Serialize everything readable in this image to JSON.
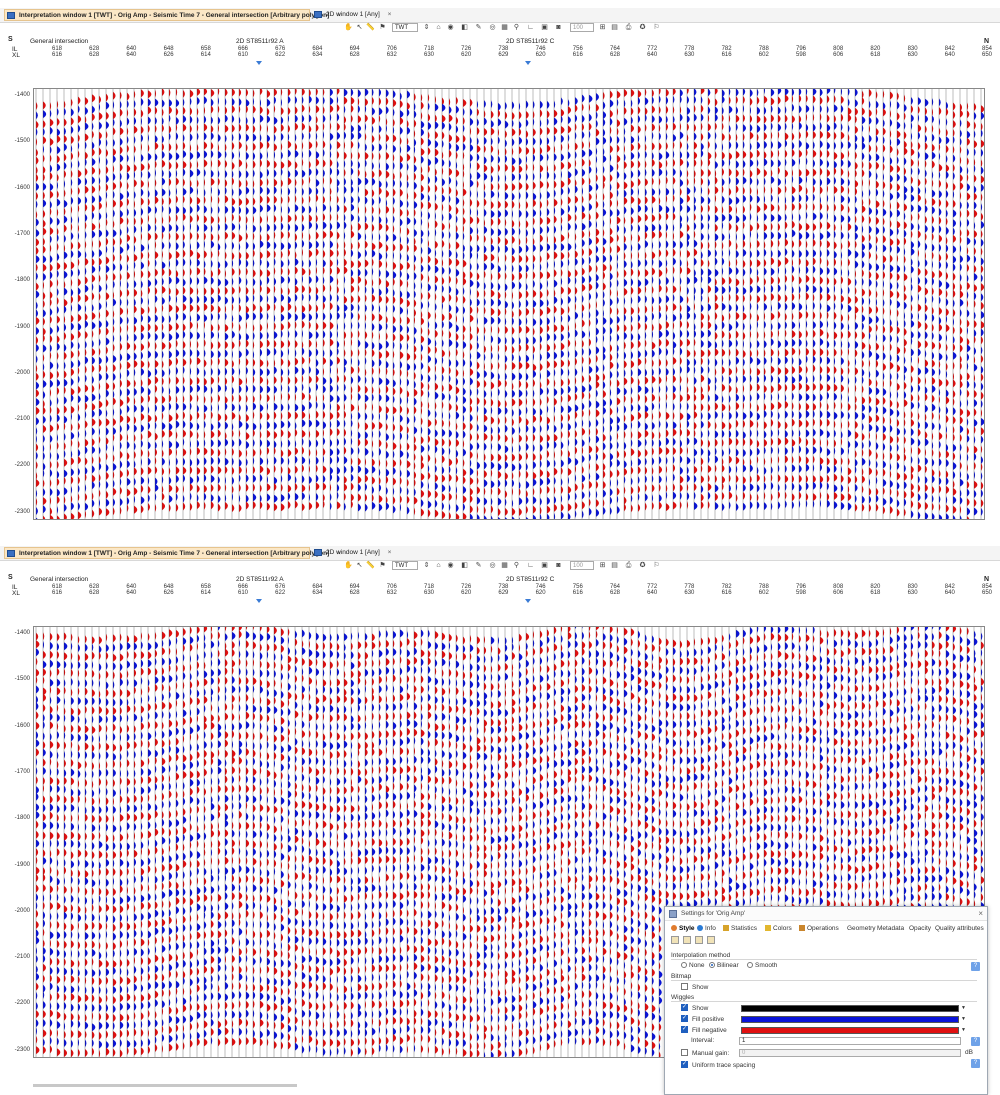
{
  "panels": [
    {
      "tab_active": "Interpretation window 1 [TWT] - Orig Amp - Seismic Time 7 - General intersection [Arbitrary polygon]",
      "tab_other": "2D window 1 [Any]",
      "close_glyph": "×",
      "toolbar": {
        "domain": "TWT",
        "zoom": "100"
      },
      "header": {
        "south": "S",
        "north": "N",
        "row1_label": "General intersection",
        "il_label": "IL",
        "xl_label": "XL",
        "line_a": "2D ST8511r92 A",
        "line_c": "2D ST8511r92 C"
      },
      "il_ticks": [
        "618",
        "628",
        "640",
        "648",
        "658",
        "666",
        "676",
        "684",
        "694",
        "706",
        "718",
        "726",
        "738",
        "746",
        "756",
        "764",
        "772",
        "778",
        "782",
        "788",
        "796",
        "808",
        "820",
        "830",
        "842",
        "854"
      ],
      "xl_ticks": [
        "616",
        "628",
        "640",
        "626",
        "614",
        "610",
        "622",
        "634",
        "628",
        "632",
        "630",
        "620",
        "629",
        "620",
        "616",
        "628",
        "640",
        "630",
        "616",
        "602",
        "598",
        "606",
        "618",
        "630",
        "640",
        "650"
      ],
      "time_labels": [
        "-1400",
        "-1500",
        "-1600",
        "-1700",
        "-1800",
        "-1900",
        "-2000",
        "-2100",
        "-2200",
        "-2300"
      ]
    },
    {
      "tab_active": "Interpretation window 1 [TWT] - Orig Amp - Seismic Time 7 - General intersection [Arbitrary polygon]",
      "tab_other": "2D window 1 [Any]",
      "close_glyph": "×",
      "toolbar": {
        "domain": "TWT",
        "zoom": "100"
      },
      "header": {
        "south": "S",
        "north": "N",
        "row1_label": "General intersection",
        "il_label": "IL",
        "xl_label": "XL",
        "line_a": "2D ST8511r92 A",
        "line_c": "2D ST8511r92 C"
      },
      "il_ticks": [
        "618",
        "628",
        "640",
        "648",
        "658",
        "666",
        "676",
        "684",
        "694",
        "706",
        "718",
        "726",
        "738",
        "746",
        "756",
        "764",
        "772",
        "778",
        "782",
        "788",
        "796",
        "808",
        "820",
        "830",
        "842",
        "854"
      ],
      "xl_ticks": [
        "616",
        "628",
        "640",
        "626",
        "614",
        "610",
        "622",
        "634",
        "628",
        "632",
        "630",
        "620",
        "629",
        "620",
        "616",
        "628",
        "640",
        "630",
        "616",
        "602",
        "598",
        "606",
        "618",
        "630",
        "640",
        "650"
      ],
      "time_labels": [
        "-1400",
        "-1500",
        "-1600",
        "-1700",
        "-1800",
        "-1900",
        "-2000",
        "-2100",
        "-2200",
        "-2300"
      ]
    }
  ],
  "dialog": {
    "title": "Settings for 'Orig Amp'",
    "close_glyph": "×",
    "tabs": [
      "Style",
      "Info",
      "Statistics",
      "Colors",
      "Operations",
      "Geometry",
      "Metadata",
      "Opacity",
      "Quality attributes"
    ],
    "interp_section": "Interpolation method",
    "interp_options": [
      "None",
      "Bilinear",
      "Smooth"
    ],
    "interp_selected": "Bilinear",
    "bitmap_section": "Bitmap",
    "bitmap_show": "Show",
    "wiggles_section": "Wiggles",
    "wiggle_show": "Show",
    "fill_positive": "Fill positive",
    "fill_negative": "Fill negative",
    "interval_label": "Interval:",
    "interval_value": "1",
    "manual_gain": "Manual gain:",
    "manual_gain_value": "0",
    "manual_gain_unit": "dB",
    "uniform_spacing": "Uniform trace spacing",
    "help_glyph": "?",
    "colors": {
      "show": "#000000",
      "positive": "#0a14d8",
      "negative": "#e01010"
    }
  },
  "seismic_colors": {
    "positive": "#0a14d8",
    "negative": "#e01010"
  }
}
